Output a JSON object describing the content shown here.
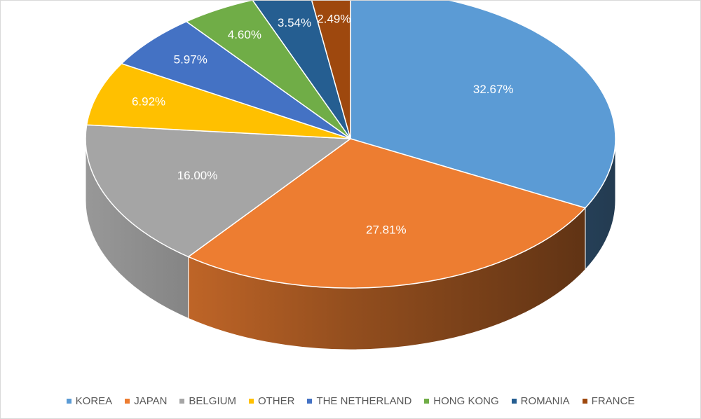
{
  "chart_data": {
    "type": "pie",
    "style": "3d-tilted",
    "title": "",
    "legend_position": "bottom",
    "start_angle_deg": 0,
    "direction": "clockwise",
    "categories": [
      "KOREA",
      "JAPAN",
      "BELGIUM",
      "OTHER",
      "THE NETHERLAND",
      "HONG KONG",
      "ROMANIA",
      "FRANCE"
    ],
    "values": [
      32.67,
      27.81,
      16.0,
      6.92,
      5.97,
      4.6,
      3.54,
      2.49
    ],
    "labels": [
      "32.67%",
      "27.81%",
      "16.00%",
      "6.92%",
      "5.97%",
      "4.60%",
      "3.54%",
      "2.49%"
    ],
    "colors": [
      "#5B9BD5",
      "#ED7D31",
      "#A5A5A5",
      "#FFC000",
      "#4472C4",
      "#70AD47",
      "#255E91",
      "#9E480E"
    ]
  }
}
